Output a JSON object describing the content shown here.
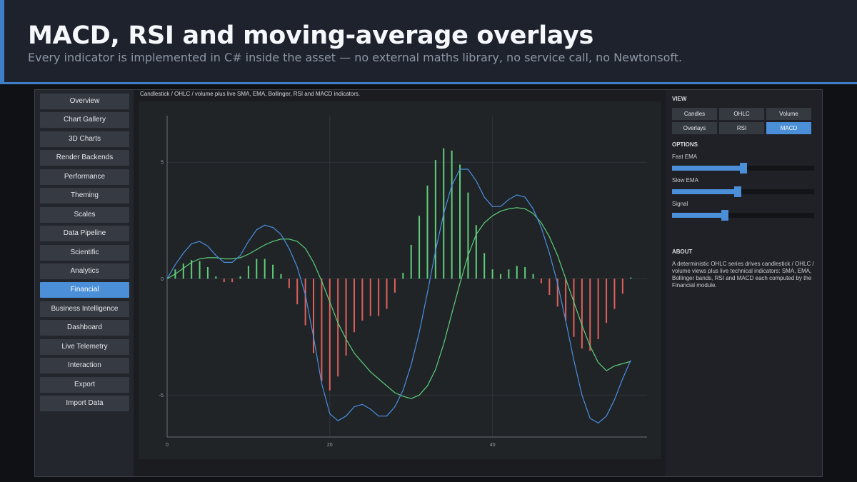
{
  "slide": {
    "title": "MACD, RSI and moving-average overlays",
    "subtitle": "Every indicator is implemented in C# inside the asset — no external maths library, no service call, no Newtonsoft."
  },
  "sidebar": {
    "items": [
      {
        "label": "Overview",
        "active": false
      },
      {
        "label": "Chart Gallery",
        "active": false
      },
      {
        "label": "3D Charts",
        "active": false
      },
      {
        "label": "Render Backends",
        "active": false
      },
      {
        "label": "Performance",
        "active": false
      },
      {
        "label": "Theming",
        "active": false
      },
      {
        "label": "Scales",
        "active": false
      },
      {
        "label": "Data Pipeline",
        "active": false
      },
      {
        "label": "Scientific",
        "active": false
      },
      {
        "label": "Analytics",
        "active": false
      },
      {
        "label": "Financial",
        "active": true
      },
      {
        "label": "Business Intelligence",
        "active": false
      },
      {
        "label": "Dashboard",
        "active": false
      },
      {
        "label": "Live Telemetry",
        "active": false
      },
      {
        "label": "Interaction",
        "active": false
      },
      {
        "label": "Export",
        "active": false
      },
      {
        "label": "Import Data",
        "active": false
      }
    ]
  },
  "chart": {
    "caption": "Candlestick / OHLC / volume plus live SMA, EMA, Bollinger, RSI and MACD indicators."
  },
  "chart_data": {
    "type": "line",
    "xlim": [
      0,
      59
    ],
    "ylim": [
      -6.8,
      7
    ],
    "x_ticks": [
      0,
      20,
      40
    ],
    "y_ticks": [
      5,
      0,
      -5
    ],
    "grid": true,
    "colors": {
      "macd": "#4a90e2",
      "signal": "#5ecf7a",
      "hist_pos": "#5ecf7a",
      "hist_neg": "#e0605a"
    },
    "series": [
      {
        "kind": "macd_line",
        "values": [
          0.0,
          0.6,
          1.1,
          1.5,
          1.6,
          1.4,
          1.0,
          0.7,
          0.7,
          1.0,
          1.6,
          2.1,
          2.3,
          2.2,
          1.9,
          1.3,
          0.5,
          -0.7,
          -2.5,
          -4.5,
          -5.8,
          -6.1,
          -5.9,
          -5.5,
          -5.4,
          -5.6,
          -5.9,
          -5.9,
          -5.5,
          -4.8,
          -3.7,
          -2.3,
          -0.6,
          1.2,
          2.8,
          4.0,
          4.7,
          4.7,
          4.2,
          3.5,
          3.1,
          3.1,
          3.4,
          3.6,
          3.5,
          3.0,
          2.2,
          1.1,
          -0.2,
          -1.8,
          -3.5,
          -5.0,
          -6.0,
          -6.2,
          -5.9,
          -5.2,
          -4.3,
          -3.5
        ]
      },
      {
        "kind": "signal_line",
        "values": [
          0.0,
          0.2,
          0.45,
          0.7,
          0.85,
          0.9,
          0.9,
          0.85,
          0.85,
          0.9,
          1.05,
          1.25,
          1.45,
          1.6,
          1.7,
          1.7,
          1.6,
          1.3,
          0.7,
          -0.1,
          -1.0,
          -1.9,
          -2.6,
          -3.2,
          -3.6,
          -4.0,
          -4.3,
          -4.6,
          -4.9,
          -5.05,
          -5.15,
          -5.0,
          -4.6,
          -3.9,
          -2.8,
          -1.5,
          -0.2,
          1.0,
          1.9,
          2.4,
          2.7,
          2.9,
          3.0,
          3.05,
          3.0,
          2.8,
          2.4,
          1.8,
          1.0,
          0.0,
          -1.0,
          -2.0,
          -2.9,
          -3.6,
          -3.95,
          -3.75,
          -3.65,
          -3.55
        ]
      },
      {
        "kind": "histogram",
        "values": [
          0.0,
          0.4,
          0.65,
          0.8,
          0.75,
          0.5,
          0.1,
          -0.15,
          -0.15,
          0.1,
          0.55,
          0.85,
          0.85,
          0.6,
          0.2,
          -0.4,
          -1.1,
          -2.0,
          -3.2,
          -4.4,
          -4.8,
          -4.2,
          -3.3,
          -2.3,
          -1.8,
          -1.6,
          -1.6,
          -1.3,
          -0.6,
          0.25,
          1.45,
          2.7,
          4.0,
          5.1,
          5.6,
          5.5,
          4.9,
          3.7,
          2.3,
          1.1,
          0.4,
          0.2,
          0.4,
          0.55,
          0.5,
          0.2,
          -0.2,
          -0.7,
          -1.2,
          -1.8,
          -2.5,
          -3.0,
          -3.1,
          -2.6,
          -1.9,
          -1.3,
          -0.65,
          0.05
        ]
      }
    ]
  },
  "right_panel": {
    "view_title": "VIEW",
    "view_buttons": [
      {
        "label": "Candles",
        "active": false
      },
      {
        "label": "OHLC",
        "active": false
      },
      {
        "label": "Volume",
        "active": false
      },
      {
        "label": "Overlays",
        "active": false
      },
      {
        "label": "RSI",
        "active": false
      },
      {
        "label": "MACD",
        "active": true
      }
    ],
    "options_title": "OPTIONS",
    "sliders": [
      {
        "label": "Fast EMA",
        "fraction": 0.5
      },
      {
        "label": "Slow EMA",
        "fraction": 0.46
      },
      {
        "label": "Signal",
        "fraction": 0.37
      }
    ],
    "about_title": "ABOUT",
    "about_text": "A deterministic OHLC series drives candlestick / OHLC / volume views plus live technical indicators: SMA, EMA, Bollinger bands, RSI and MACD  each computed by the Financial module."
  }
}
